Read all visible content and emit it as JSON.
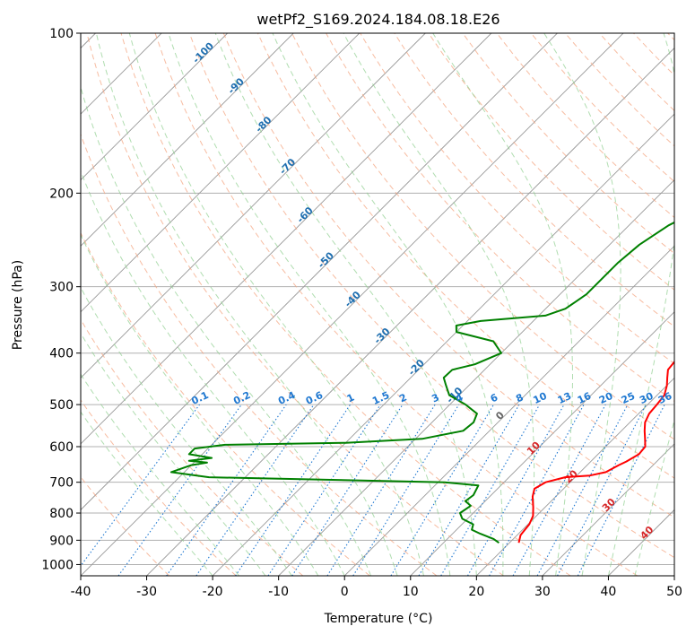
{
  "chart_data": {
    "type": "line",
    "title": "wetPf2_S169.2024.184.08.18.E26",
    "xlabel": "Temperature (°C)",
    "ylabel": "Pressure (hPa)",
    "xlim": [
      -40,
      50
    ],
    "ylim": [
      1050,
      100
    ],
    "y_scale": "log",
    "grid": true,
    "x_ticks": [
      -40,
      -30,
      -20,
      -10,
      0,
      10,
      20,
      30,
      40,
      50
    ],
    "y_ticks": [
      100,
      200,
      300,
      400,
      500,
      600,
      700,
      800,
      900,
      1000
    ],
    "colors": {
      "temperature": "#ff0000",
      "dewpoint": "#008000",
      "dry_adiabat": "#f4a582",
      "moist_adiabat": "#8fcf8f",
      "mixing_ratio": "#1f78d1",
      "isotherm": "#999999"
    },
    "series": [
      {
        "color": "#ff0000",
        "points": [
          [
            21.4,
            910
          ],
          [
            20.5,
            880
          ],
          [
            20.2,
            840
          ],
          [
            19.5,
            810
          ],
          [
            18.2,
            780
          ],
          [
            16.5,
            745
          ],
          [
            15.6,
            720
          ],
          [
            16.3,
            700
          ],
          [
            18.5,
            685
          ],
          [
            22.0,
            680
          ],
          [
            23.9,
            670
          ],
          [
            24.8,
            650
          ],
          [
            25.4,
            640
          ],
          [
            26.2,
            620
          ],
          [
            26.0,
            600
          ],
          [
            24.8,
            580
          ],
          [
            23.5,
            560
          ],
          [
            22.3,
            540
          ],
          [
            21.6,
            520
          ],
          [
            21.4,
            500
          ],
          [
            21.1,
            480
          ],
          [
            20.0,
            460
          ],
          [
            18.9,
            445
          ],
          [
            17.8,
            430
          ],
          [
            17.3,
            400
          ],
          [
            16.4,
            360
          ],
          [
            15.2,
            330
          ],
          [
            13.2,
            300
          ],
          [
            10.4,
            270
          ],
          [
            7.5,
            245
          ],
          [
            4.7,
            225
          ],
          [
            2.0,
            207
          ],
          [
            1.3,
            197
          ],
          [
            2.3,
            183
          ],
          [
            3.5,
            177
          ],
          [
            3.3,
            167
          ],
          [
            1.7,
            157
          ],
          [
            1.1,
            147
          ],
          [
            1.3,
            137
          ],
          [
            2.3,
            127
          ],
          [
            3.0,
            120
          ],
          [
            3.3,
            113
          ],
          [
            2.9,
            100
          ]
        ]
      },
      {
        "color": "#008000",
        "points": [
          [
            18.4,
            910
          ],
          [
            17.0,
            895
          ],
          [
            14.2,
            875
          ],
          [
            12.3,
            860
          ],
          [
            11.7,
            840
          ],
          [
            9.2,
            820
          ],
          [
            8.0,
            800
          ],
          [
            8.5,
            775
          ],
          [
            7.0,
            760
          ],
          [
            7.3,
            740
          ],
          [
            6.6,
            710
          ],
          [
            1.0,
            700
          ],
          [
            -35.5,
            685
          ],
          [
            -42.0,
            670
          ],
          [
            -40.0,
            650
          ],
          [
            -38.0,
            643
          ],
          [
            -41.0,
            638
          ],
          [
            -38.0,
            630
          ],
          [
            -42.0,
            620
          ],
          [
            -42.0,
            605
          ],
          [
            -38.0,
            595
          ],
          [
            -20.0,
            590
          ],
          [
            -9.0,
            580
          ],
          [
            -4.0,
            560
          ],
          [
            -3.7,
            540
          ],
          [
            -4.5,
            520
          ],
          [
            -7.6,
            500
          ],
          [
            -11.5,
            480
          ],
          [
            -13.5,
            460
          ],
          [
            -15.0,
            445
          ],
          [
            -14.9,
            430
          ],
          [
            -12.3,
            420
          ],
          [
            -10.0,
            400
          ],
          [
            -13.0,
            380
          ],
          [
            -20.0,
            365
          ],
          [
            -21.0,
            355
          ],
          [
            -18.0,
            348
          ],
          [
            -9.0,
            340
          ],
          [
            -7.0,
            330
          ],
          [
            -6.5,
            320
          ],
          [
            -6.0,
            310
          ],
          [
            -6.0,
            290
          ],
          [
            -6.0,
            270
          ],
          [
            -5.5,
            250
          ],
          [
            -4.0,
            230
          ],
          [
            -1.7,
            215
          ],
          [
            0.0,
            200
          ],
          [
            -0.5,
            187
          ],
          [
            -1.5,
            180
          ],
          [
            -3.0,
            172
          ],
          [
            -4.5,
            165
          ],
          [
            -4.0,
            158
          ],
          [
            -2.5,
            150
          ],
          [
            -2.2,
            140
          ],
          [
            -3.0,
            130
          ],
          [
            -3.2,
            120
          ],
          [
            -2.0,
            113
          ],
          [
            0.5,
            105
          ],
          [
            1.5,
            100
          ]
        ]
      }
    ],
    "isotherm_labels": [
      "-100",
      "-90",
      "-80",
      "-70",
      "-60",
      "-50",
      "-40",
      "-30",
      "-20",
      "-10",
      "0",
      "10",
      "20",
      "30",
      "40"
    ],
    "mixing_ratio_labels": [
      "0.1",
      "0.2",
      "0.4",
      "0.6",
      "1",
      "1.5",
      "2",
      "3",
      "4",
      "6",
      "8",
      "10",
      "13",
      "16",
      "20",
      "25",
      "30",
      "36"
    ],
    "mixing_ratio_values": [
      0.1,
      0.2,
      0.4,
      0.6,
      1,
      1.5,
      2,
      3,
      4,
      6,
      8,
      10,
      13,
      16,
      20,
      25,
      30,
      36
    ]
  }
}
